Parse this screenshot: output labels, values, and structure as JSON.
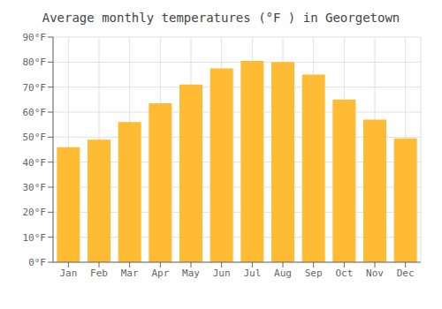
{
  "chart_data": {
    "type": "bar",
    "title": "Average monthly temperatures (°F ) in Georgetown",
    "categories": [
      "Jan",
      "Feb",
      "Mar",
      "Apr",
      "May",
      "Jun",
      "Jul",
      "Aug",
      "Sep",
      "Oct",
      "Nov",
      "Dec"
    ],
    "values": [
      46,
      49,
      56,
      63.5,
      71,
      77.5,
      80.5,
      80,
      75,
      65,
      57,
      49.5
    ],
    "color": "#FFBB33",
    "ylim": [
      0,
      90
    ],
    "yticks": [
      {
        "value": 0,
        "label": "0°F"
      },
      {
        "value": 10,
        "label": "10°F"
      },
      {
        "value": 20,
        "label": "20°F"
      },
      {
        "value": 30,
        "label": "30°F"
      },
      {
        "value": 40,
        "label": "40°F"
      },
      {
        "value": 50,
        "label": "50°F"
      },
      {
        "value": 60,
        "label": "60°F"
      },
      {
        "value": 70,
        "label": "70°F"
      },
      {
        "value": 80,
        "label": "80°F"
      },
      {
        "value": 90,
        "label": "90°F"
      }
    ],
    "grid": true
  }
}
